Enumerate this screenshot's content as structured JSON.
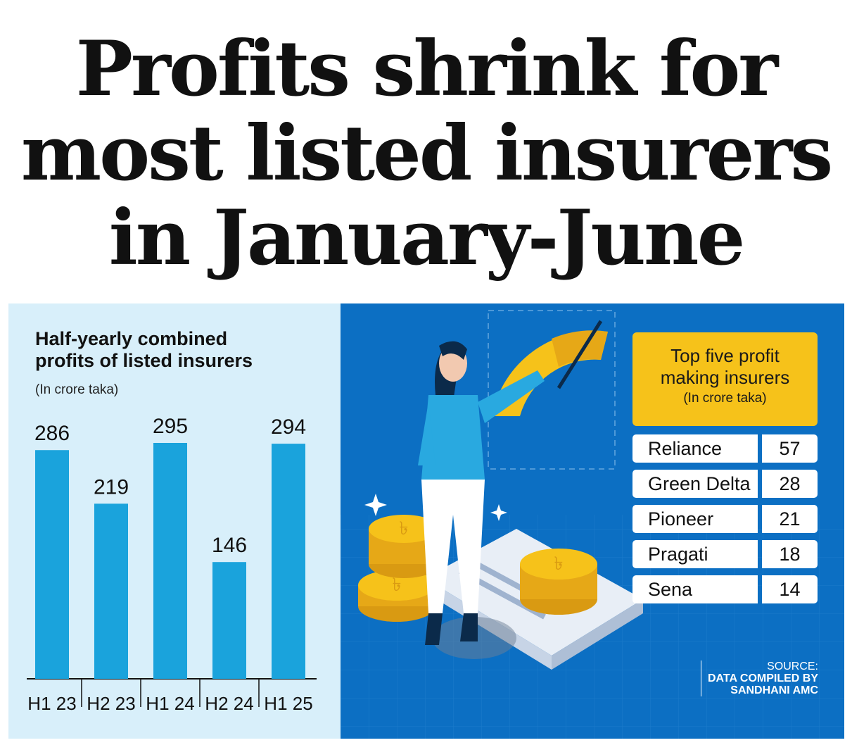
{
  "headline": {
    "line1": "Profits shrink for",
    "line2": "most listed insurers",
    "line3": "in January-June"
  },
  "chart_data": {
    "type": "bar",
    "title_line1": "Half-yearly combined",
    "title_line2": "profits of listed insurers",
    "unit": "(In crore taka)",
    "categories": [
      "H1 23",
      "H2 23",
      "H1 24",
      "H2 24",
      "H1 25"
    ],
    "values": [
      286,
      219,
      295,
      146,
      294
    ],
    "bar_color": "#1aa3dc",
    "ylim": [
      0,
      295
    ],
    "grid": false
  },
  "top_five": {
    "title_line1": "Top five profit",
    "title_line2": "making insurers",
    "unit": "(In crore taka)",
    "rows": [
      {
        "name": "Reliance",
        "value": "57"
      },
      {
        "name": "Green Delta",
        "value": "28"
      },
      {
        "name": "Pioneer",
        "value": "21"
      },
      {
        "name": "Pragati",
        "value": "18"
      },
      {
        "name": "Sena",
        "value": "14"
      }
    ],
    "header_color": "#f6c21a"
  },
  "source": {
    "label": "SOURCE:",
    "line1": "DATA COMPILED BY",
    "line2": "SANDHANI AMC"
  }
}
